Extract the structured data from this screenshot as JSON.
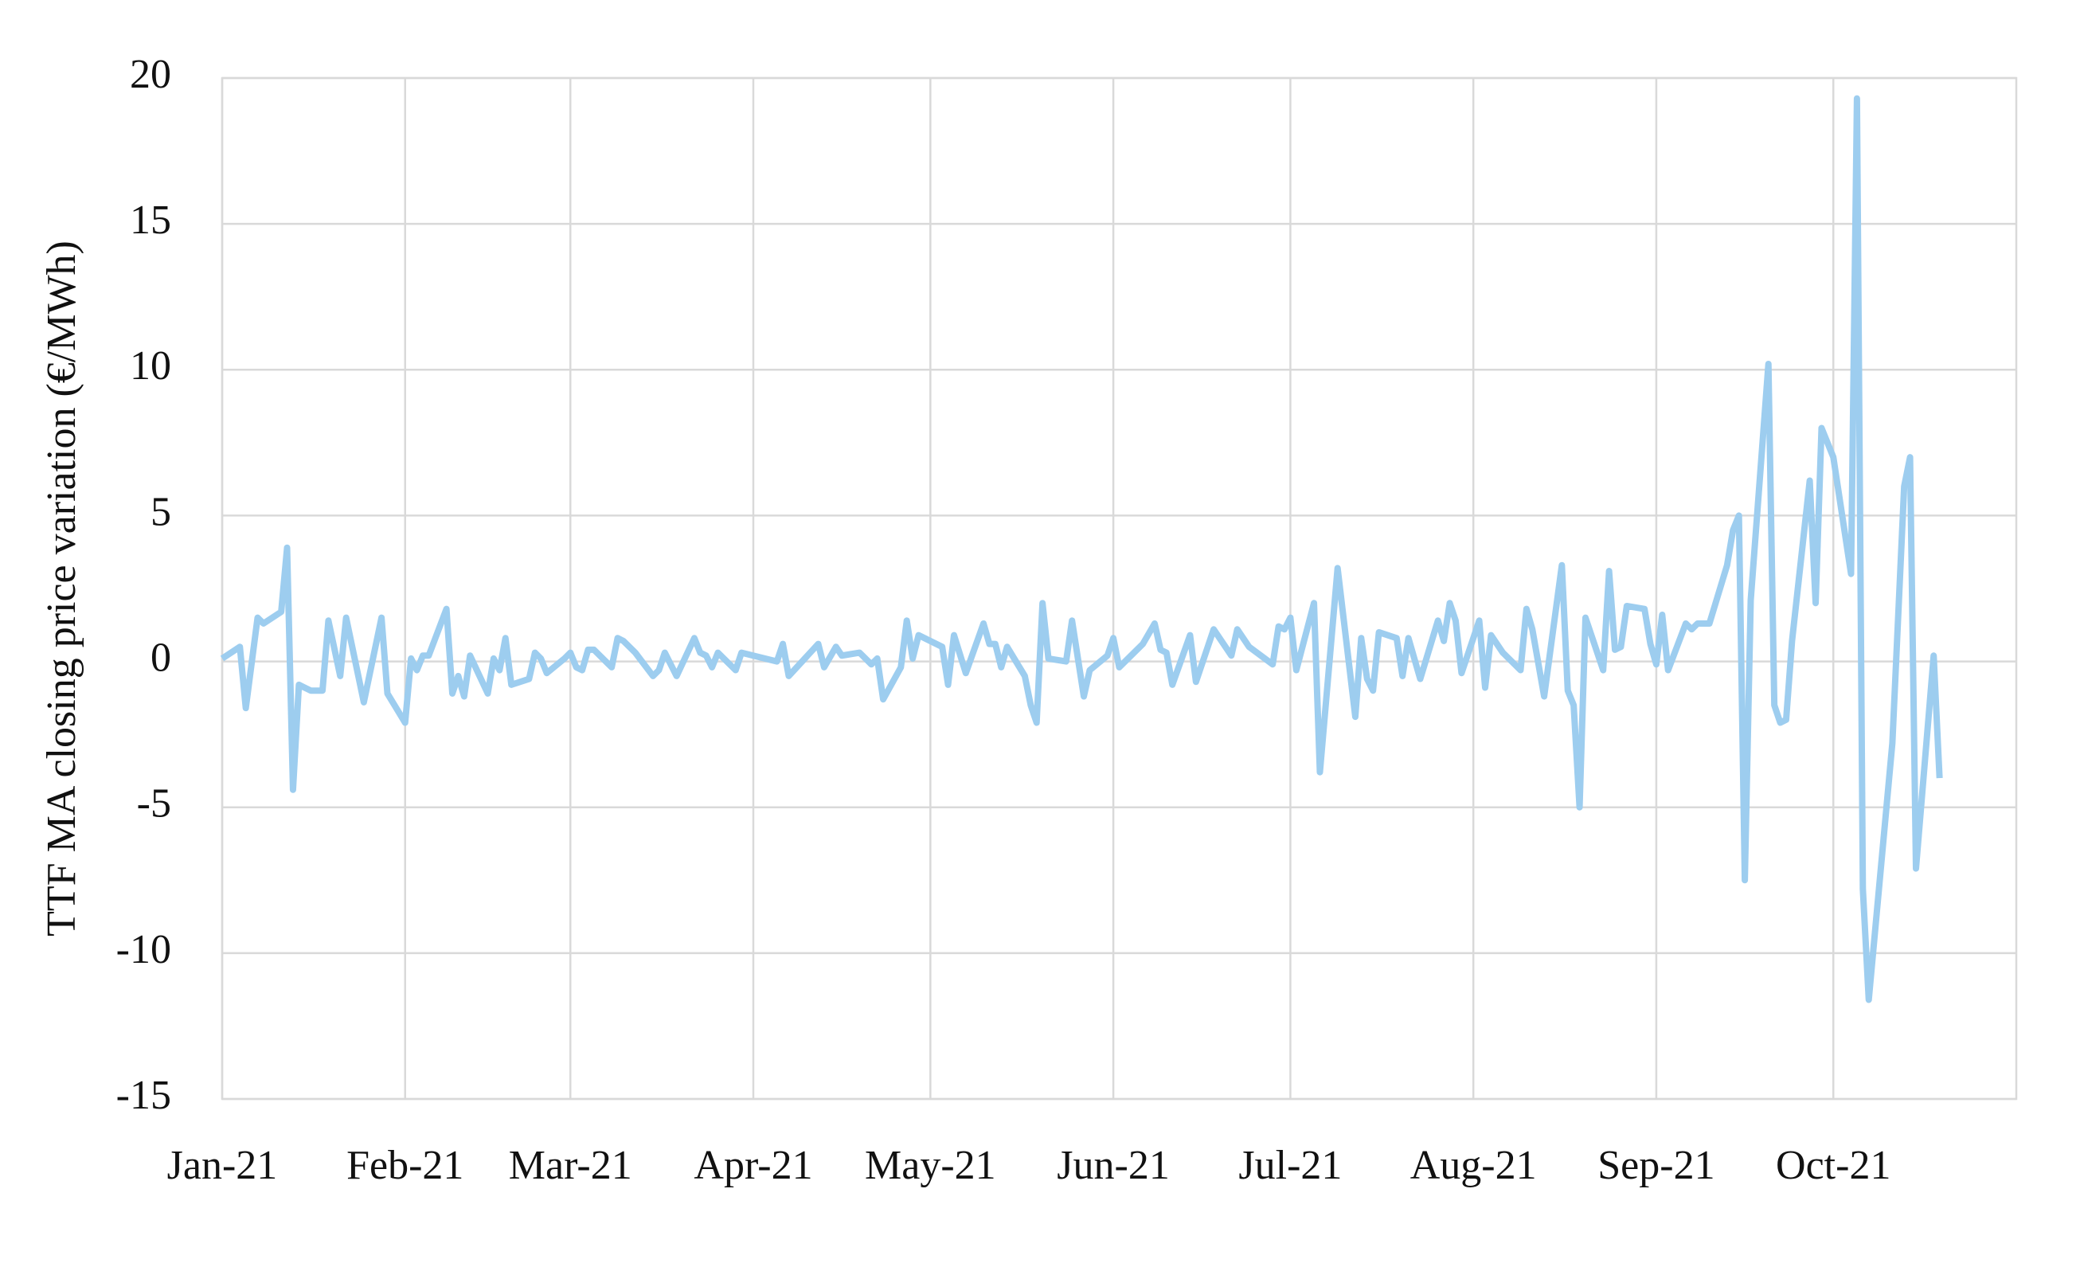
{
  "chart_data": {
    "type": "line",
    "ylabel": "TTF MA closing price variation (€/MWh)",
    "xlim": [
      0,
      304
    ],
    "xticks": [
      {
        "value": 0,
        "label": "Jan-21"
      },
      {
        "value": 31,
        "label": "Feb-21"
      },
      {
        "value": 59,
        "label": "Mar-21"
      },
      {
        "value": 90,
        "label": "Apr-21"
      },
      {
        "value": 120,
        "label": "May-21"
      },
      {
        "value": 151,
        "label": "Jun-21"
      },
      {
        "value": 181,
        "label": "Jul-21"
      },
      {
        "value": 212,
        "label": "Aug-21"
      },
      {
        "value": 243,
        "label": "Sep-21"
      },
      {
        "value": 273,
        "label": "Oct-21"
      }
    ],
    "ylim": [
      -15,
      20
    ],
    "yticks": [
      -15,
      -10,
      -5,
      0,
      5,
      10,
      15,
      20
    ],
    "grid": true,
    "series": [
      {
        "color": "#9dcdef",
        "x": [
          0,
          3,
          4,
          6,
          7,
          10,
          11,
          12,
          13,
          15,
          17,
          18,
          20,
          21,
          24,
          27,
          28,
          31,
          32,
          33,
          34,
          35,
          38,
          39,
          40,
          41,
          42,
          45,
          46,
          47,
          48,
          49,
          52,
          53,
          54,
          55,
          58,
          59,
          60,
          61,
          62,
          63,
          66,
          67,
          68,
          70,
          73,
          74,
          75,
          77,
          80,
          81,
          82,
          83,
          84,
          87,
          88,
          94,
          95,
          96,
          101,
          102,
          104,
          105,
          108,
          110,
          111,
          112,
          115,
          116,
          117,
          118,
          122,
          123,
          124,
          126,
          129,
          130,
          131,
          132,
          133,
          136,
          137,
          138,
          139,
          140,
          143,
          144,
          146,
          147,
          150,
          151,
          152,
          156,
          158,
          159,
          160,
          161,
          164,
          165,
          168,
          171,
          172,
          174,
          178,
          179,
          180,
          181,
          182,
          185,
          186,
          189,
          192,
          193,
          194,
          195,
          196,
          199,
          200,
          201,
          203,
          206,
          207,
          208,
          209,
          210,
          213,
          214,
          215,
          217,
          220,
          221,
          222,
          224,
          227,
          228,
          229,
          230,
          231,
          234,
          235,
          236,
          237,
          238,
          241,
          242,
          243,
          244,
          245,
          248,
          249,
          250,
          252,
          255,
          256,
          257,
          258,
          259,
          262,
          263,
          264,
          265,
          266,
          269,
          270,
          271,
          273,
          276,
          277,
          278,
          279,
          283,
          285,
          286,
          287,
          290,
          291
        ],
        "values": [
          0.1,
          0.5,
          -1.6,
          1.5,
          1.3,
          1.7,
          3.9,
          -4.4,
          -0.8,
          -1.0,
          -1.0,
          1.4,
          -0.5,
          1.5,
          -1.4,
          1.5,
          -1.1,
          -2.1,
          0.1,
          -0.3,
          0.2,
          0.2,
          1.8,
          -1.1,
          -0.5,
          -1.2,
          0.2,
          -1.1,
          0.1,
          -0.3,
          0.8,
          -0.8,
          -0.6,
          0.3,
          0.1,
          -0.4,
          0.1,
          0.3,
          -0.2,
          -0.3,
          0.4,
          0.4,
          -0.2,
          0.8,
          0.7,
          0.3,
          -0.5,
          -0.3,
          0.3,
          -0.5,
          0.8,
          0.3,
          0.2,
          -0.2,
          0.3,
          -0.3,
          0.3,
          0.0,
          0.6,
          -0.5,
          0.6,
          -0.2,
          0.5,
          0.2,
          0.3,
          -0.1,
          0.1,
          -1.3,
          -0.2,
          1.4,
          0.1,
          0.9,
          0.5,
          -0.8,
          0.9,
          -0.4,
          1.3,
          0.6,
          0.6,
          -0.2,
          0.5,
          -0.5,
          -1.5,
          -2.1,
          2.0,
          0.1,
          0.0,
          1.4,
          -1.2,
          -0.3,
          0.2,
          0.8,
          -0.2,
          0.6,
          1.3,
          0.4,
          0.3,
          -0.8,
          0.9,
          -0.7,
          1.1,
          0.2,
          1.1,
          0.5,
          -0.1,
          1.2,
          1.1,
          1.5,
          -0.3,
          2.0,
          -3.8,
          3.2,
          -1.9,
          0.8,
          -0.6,
          -1.0,
          1.0,
          0.8,
          -0.5,
          0.8,
          -0.6,
          1.4,
          0.7,
          2.0,
          1.4,
          -0.4,
          1.4,
          -0.9,
          0.9,
          0.3,
          -0.3,
          1.8,
          1.1,
          -1.2,
          3.3,
          -1.0,
          -1.5,
          -5.0,
          1.5,
          -0.3,
          3.1,
          0.4,
          0.5,
          1.9,
          1.8,
          0.6,
          -0.1,
          1.6,
          -0.3,
          1.3,
          1.1,
          1.3,
          1.3,
          3.3,
          4.5,
          5.0,
          -7.5,
          2.1,
          10.2,
          -1.5,
          -2.1,
          -2.0,
          0.7,
          6.2,
          2.0,
          8.0,
          7.0,
          3.0,
          19.3,
          -7.8,
          -11.6,
          -2.8,
          6.0,
          7.0,
          -7.1,
          0.2,
          -4.0
        ]
      }
    ]
  }
}
